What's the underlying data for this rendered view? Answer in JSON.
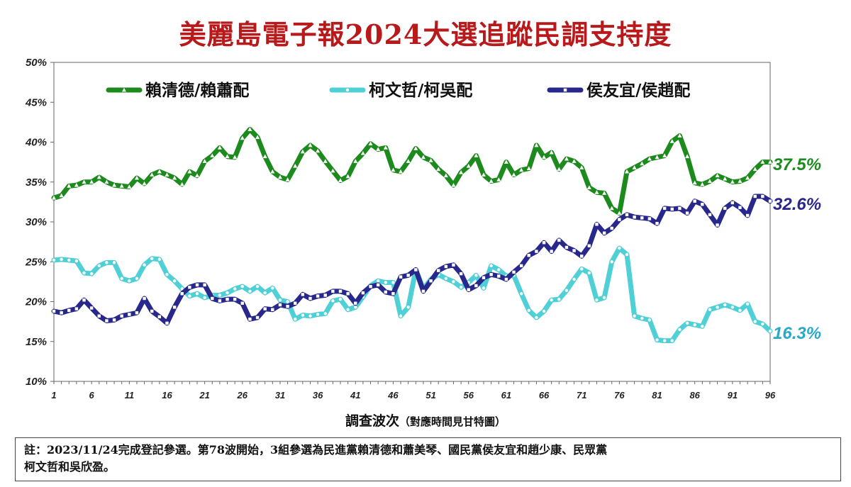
{
  "title": "美麗島電子報2024大選追蹤民調支持度",
  "chart_data": {
    "type": "line",
    "ylim": [
      10,
      50
    ],
    "y_ticks": [
      "10%",
      "15%",
      "20%",
      "25%",
      "30%",
      "35%",
      "40%",
      "45%",
      "50%"
    ],
    "xlim": [
      1,
      96
    ],
    "x_ticks": [
      "1",
      "6",
      "11",
      "16",
      "21",
      "26",
      "31",
      "36",
      "41",
      "46",
      "51",
      "56",
      "61",
      "66",
      "71",
      "76",
      "81",
      "86",
      "91",
      "96"
    ],
    "xlabel": "調查波次",
    "xlabel_note": "（對應時間見甘特圖）",
    "legend_position": "top",
    "grid": false,
    "series": [
      {
        "name": "賴清德/賴蕭配",
        "color": "#1d8a1d",
        "marker": "triangle",
        "end_label": "37.5%",
        "values": [
          33.0,
          33.3,
          34.5,
          34.6,
          35.0,
          35.0,
          35.6,
          35.0,
          34.6,
          34.5,
          34.4,
          35.5,
          34.8,
          35.9,
          36.3,
          35.9,
          35.5,
          34.7,
          36.3,
          35.8,
          37.6,
          38.3,
          39.3,
          38.2,
          38.1,
          40.5,
          41.6,
          40.6,
          38.2,
          36.3,
          35.6,
          35.3,
          37.0,
          38.8,
          39.6,
          38.9,
          37.6,
          36.4,
          35.2,
          35.7,
          37.6,
          38.6,
          39.8,
          39.1,
          39.3,
          36.5,
          36.3,
          37.6,
          39.2,
          38.1,
          37.7,
          36.6,
          35.8,
          34.6,
          36.2,
          37.0,
          38.3,
          35.9,
          35.1,
          35.3,
          37.5,
          35.9,
          36.5,
          36.7,
          39.6,
          38.1,
          38.7,
          36.6,
          37.9,
          37.6,
          36.8,
          34.3,
          33.7,
          33.6,
          31.7,
          31.1,
          36.3,
          36.8,
          37.3,
          37.9,
          38.1,
          38.3,
          40.1,
          40.8,
          38.2,
          34.9,
          34.7,
          35.1,
          35.8,
          35.4,
          35.0,
          35.1,
          35.5,
          36.6,
          37.5,
          37.5
        ]
      },
      {
        "name": "柯文哲/柯吳配",
        "color": "#4fd0d6",
        "marker": "circle",
        "end_label": "16.3%",
        "values": [
          25.2,
          25.3,
          25.2,
          25.1,
          23.6,
          23.5,
          24.5,
          24.9,
          24.9,
          22.9,
          22.6,
          22.9,
          24.6,
          25.4,
          25.3,
          23.4,
          22.6,
          21.6,
          20.7,
          21.0,
          20.5,
          20.8,
          20.8,
          21.1,
          21.6,
          21.9,
          21.3,
          21.9,
          21.1,
          21.7,
          20.2,
          20.0,
          17.8,
          18.3,
          18.2,
          18.4,
          18.5,
          20.1,
          20.3,
          19.0,
          19.3,
          20.6,
          22.0,
          22.6,
          22.4,
          22.4,
          18.2,
          19.3,
          24.0,
          21.6,
          22.8,
          23.4,
          22.9,
          22.5,
          21.8,
          22.4,
          23.3,
          21.7,
          24.5,
          24.0,
          23.2,
          23.3,
          21.0,
          18.9,
          18.0,
          18.8,
          20.2,
          20.3,
          21.4,
          22.8,
          24.1,
          23.6,
          20.2,
          20.5,
          25.0,
          26.7,
          25.9,
          18.2,
          17.9,
          17.7,
          15.2,
          15.1,
          15.1,
          16.5,
          17.3,
          17.1,
          16.9,
          19.0,
          19.3,
          19.6,
          19.3,
          18.9,
          19.7,
          17.5,
          17.2,
          16.3
        ]
      },
      {
        "name": "侯友宜/侯趙配",
        "color": "#28288c",
        "marker": "square",
        "end_label": "32.6%",
        "values": [
          18.8,
          18.6,
          18.9,
          19.1,
          20.2,
          19.2,
          18.2,
          17.6,
          17.7,
          18.2,
          18.4,
          18.6,
          20.4,
          18.8,
          18.1,
          17.3,
          19.3,
          21.0,
          21.8,
          22.1,
          22.1,
          20.4,
          20.1,
          20.3,
          20.3,
          19.8,
          17.8,
          18.0,
          19.1,
          19.0,
          19.6,
          19.4,
          19.8,
          20.9,
          20.4,
          20.7,
          20.8,
          21.3,
          21.3,
          21.0,
          19.8,
          21.1,
          21.9,
          22.1,
          21.2,
          21.0,
          23.1,
          23.3,
          24.0,
          21.3,
          22.6,
          23.9,
          24.4,
          24.6,
          23.5,
          21.5,
          22.0,
          23.0,
          23.4,
          23.2,
          22.8,
          23.7,
          24.5,
          25.8,
          26.3,
          27.4,
          26.3,
          27.7,
          26.8,
          26.4,
          25.7,
          27.0,
          29.7,
          28.6,
          29.2,
          30.3,
          30.9,
          30.6,
          30.5,
          30.4,
          29.8,
          31.7,
          31.6,
          31.7,
          31.1,
          32.6,
          32.2,
          30.9,
          29.6,
          31.7,
          32.4,
          31.8,
          30.8,
          33.2,
          33.2,
          32.6
        ]
      }
    ]
  },
  "note": {
    "line1": "註：2023/11/24完成登記參選。第78波開始，3組參選為民進黨賴清德和蕭美琴、國民黨侯友宜和趙少康、民眾黨",
    "line2": "柯文哲和吳欣盈。"
  }
}
